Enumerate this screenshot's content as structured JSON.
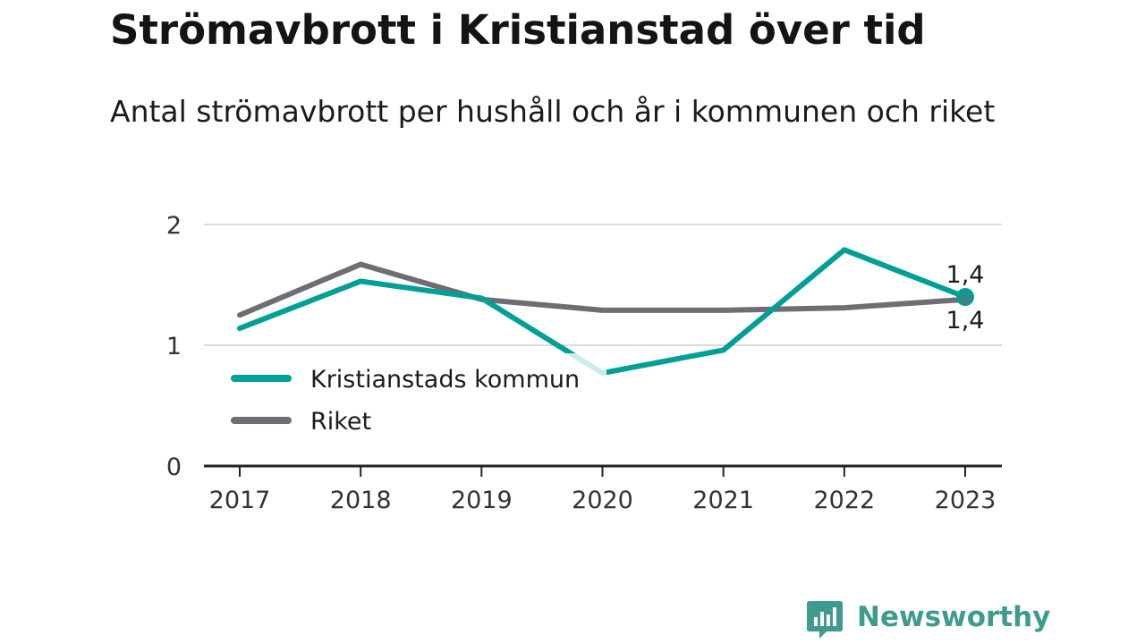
{
  "title": "Strömavbrott i Kristianstad över tid",
  "subtitle": "Antal strömavbrott per hushåll och år i kommunen och riket",
  "colors": {
    "kommun": "#00a096",
    "riket": "#6e6d73",
    "grid": "#dadada",
    "axis": "#222222",
    "brand": "#3f9b8e"
  },
  "chart_data": {
    "type": "line",
    "x": [
      "2017",
      "2018",
      "2019",
      "2020",
      "2021",
      "2022",
      "2023"
    ],
    "ylim": [
      0,
      2
    ],
    "yticks": [
      "0",
      "1",
      "2"
    ],
    "grid": true,
    "legend_position": "bottom-left",
    "series": [
      {
        "name": "Kristianstads kommun",
        "values": [
          1.14,
          1.53,
          1.39,
          0.77,
          0.96,
          1.79,
          1.4
        ]
      },
      {
        "name": "Riket",
        "values": [
          1.25,
          1.67,
          1.38,
          1.29,
          1.29,
          1.31,
          1.38
        ]
      }
    ],
    "end_labels": {
      "kommun": "1,4",
      "riket": "1,4"
    }
  },
  "brand": {
    "name": "Newsworthy",
    "logo_icon": "bar-chart-speech-bubble-icon"
  }
}
